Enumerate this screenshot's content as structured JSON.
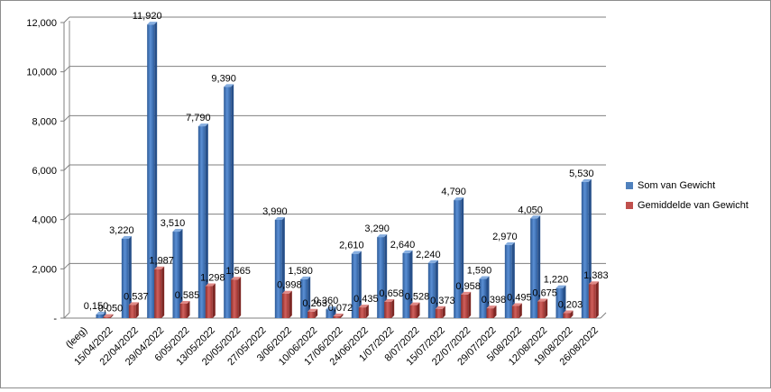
{
  "chart_data": {
    "type": "bar",
    "title": "",
    "xlabel": "",
    "ylabel": "",
    "ylim": [
      0,
      12000
    ],
    "ytick_labels": [
      "-",
      "2,000",
      "4,000",
      "6,000",
      "8,000",
      "10,000",
      "12,000"
    ],
    "grid": true,
    "legend_position": "right",
    "categories": [
      "(leeg)",
      "15/04/2022",
      "22/04/2022",
      "29/04/2022",
      "6/05/2022",
      "13/05/2022",
      "20/05/2022",
      "27/05/2022",
      "3/06/2022",
      "10/06/2022",
      "17/06/2022",
      "24/06/2022",
      "1/07/2022",
      "8/07/2022",
      "15/07/2022",
      "22/07/2022",
      "29/07/2022",
      "5/08/2022",
      "12/08/2022",
      "19/08/2022",
      "26/08/2022"
    ],
    "series": [
      {
        "name": "Som van Gewicht",
        "color": "#4f81bd",
        "values": [
          null,
          150,
          3220,
          11920,
          3510,
          7790,
          9390,
          null,
          3990,
          1580,
          360,
          2610,
          3290,
          2640,
          2240,
          4790,
          1590,
          2970,
          4050,
          1220,
          5530
        ],
        "labels": [
          "",
          "0,150",
          "3,220",
          "11,920",
          "3,510",
          "7,790",
          "9,390",
          "",
          "3,990",
          "1,580",
          "0,360",
          "2,610",
          "3,290",
          "2,640",
          "2,240",
          "4,790",
          "1,590",
          "2,970",
          "4,050",
          "1,220",
          "5,530"
        ]
      },
      {
        "name": "Gemiddelde van Gewicht",
        "color": "#c0504d",
        "values": [
          null,
          50,
          537,
          1987,
          585,
          1298,
          1565,
          null,
          998,
          263,
          72,
          435,
          658,
          528,
          373,
          958,
          398,
          495,
          675,
          203,
          1383
        ],
        "labels": [
          "",
          "0,050",
          "0,537",
          "1,987",
          "0,585",
          "1,298",
          "1,565",
          "",
          "0,998",
          "0,263",
          "0,072",
          "0,435",
          "0,658",
          "0,528",
          "0,373",
          "0,958",
          "0,398",
          "0,495",
          "0,675",
          "0,203",
          "1,383"
        ]
      }
    ]
  }
}
